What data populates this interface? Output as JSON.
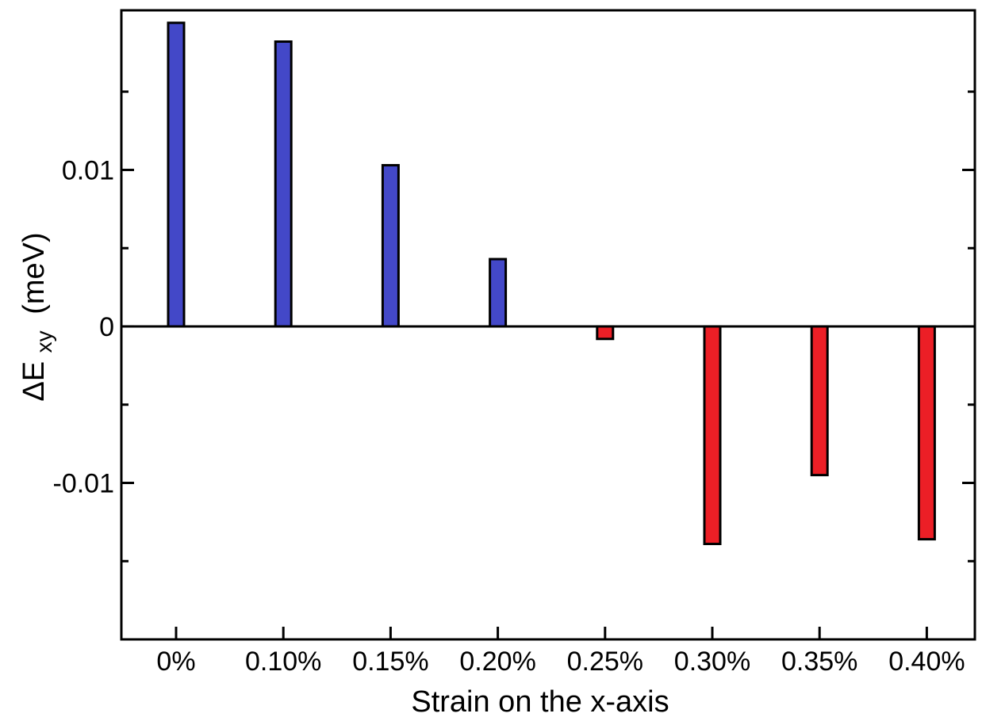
{
  "chart_data": {
    "type": "bar",
    "title": "",
    "xlabel": "Strain on the x-axis",
    "ylabel": {
      "prefix": "ΔE",
      "subscript": "xy",
      "unit": "(meV)"
    },
    "categories": [
      "0%",
      "0.10%",
      "0.15%",
      "0.20%",
      "0.25%",
      "0.30%",
      "0.35%",
      "0.40%"
    ],
    "values": [
      0.0194,
      0.0182,
      0.0103,
      0.0043,
      -0.0008,
      -0.0139,
      -0.0095,
      -0.0136
    ],
    "ylim": [
      -0.02,
      0.0202
    ],
    "yticks": [
      {
        "value": 0.01,
        "label": "0.01"
      },
      {
        "value": 0,
        "label": "0"
      },
      {
        "value": -0.01,
        "label": "-0.01"
      }
    ],
    "yminor_ticks": [
      0.015,
      0.005,
      -0.005,
      -0.015
    ],
    "grid": false,
    "legend": "none",
    "colors": {
      "positive": "#4348c8",
      "negative": "#ec1f26",
      "outline": "#000000",
      "background": "#ffffff"
    }
  }
}
